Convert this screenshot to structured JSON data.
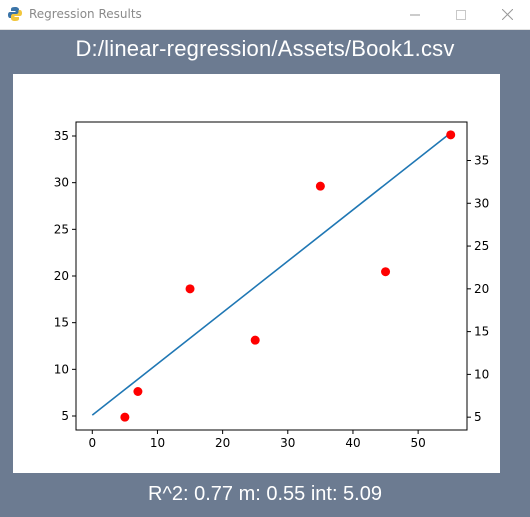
{
  "window": {
    "title": "Regression Results",
    "icon": "python-icon",
    "controls": [
      "minimize-icon",
      "maximize-icon",
      "close-icon"
    ]
  },
  "header": {
    "file_path": "D:/linear-regression/Assets/Book1.csv"
  },
  "footer": {
    "result_text": "R^2: 0.77 m: 0.55 int: 5.09"
  },
  "colors": {
    "line": "#1f77b4",
    "points": "#ff0000",
    "background": "#6c7b91"
  },
  "chart_data": {
    "type": "scatter",
    "xlim": [
      -2.5,
      57.5
    ],
    "ylim": [
      3.5,
      36.5
    ],
    "ylim_right": [
      3.5,
      39.5
    ],
    "x_ticks": [
      0,
      10,
      20,
      30,
      40,
      50
    ],
    "y_ticks": [
      5,
      10,
      15,
      20,
      25,
      30,
      35
    ],
    "y_ticks_right": [
      5,
      10,
      15,
      20,
      25,
      30,
      35
    ],
    "series": [
      {
        "kind": "scatter",
        "x": [
          5,
          7,
          15,
          25,
          35,
          45,
          55
        ],
        "y": [
          5,
          8,
          20,
          14,
          32,
          22,
          38
        ],
        "axis": "right",
        "color": "#ff0000"
      },
      {
        "kind": "line",
        "x": [
          0,
          55
        ],
        "y": [
          5.09,
          35.34
        ],
        "axis": "left",
        "color": "#1f77b4"
      }
    ]
  }
}
